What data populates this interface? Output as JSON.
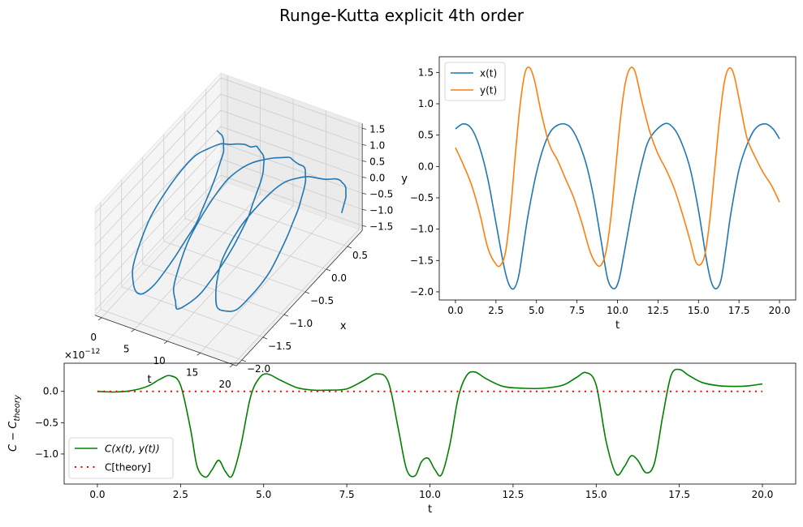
{
  "suptitle": "Runge-Kutta explicit 4th order",
  "chart_data": [
    {
      "type": "line3d",
      "axes": {
        "t": {
          "label": "t",
          "ticks": [
            0,
            5,
            10,
            15,
            20
          ],
          "tick_labels": [
            "0",
            "5",
            "10",
            "15",
            "20"
          ]
        },
        "x": {
          "label": "x",
          "ticks": [
            0.5,
            0.0,
            -0.5,
            -1.0,
            -1.5,
            -2.0
          ],
          "tick_labels": [
            "0.5",
            "0.0",
            "−0.5",
            "−1.0",
            "−1.5",
            "−2.0"
          ]
        },
        "y": {
          "label": "y",
          "ticks": [
            1.5,
            1.0,
            0.5,
            0.0,
            -0.5,
            -1.0,
            -1.5
          ],
          "tick_labels": [
            "1.5",
            "1.0",
            "0.5",
            "0.0",
            "−0.5",
            "−1.0",
            "−1.5"
          ]
        }
      },
      "series": [
        {
          "color": "#1f77b4"
        }
      ]
    },
    {
      "type": "line",
      "xlabel": "t",
      "xlim": [
        -1,
        21
      ],
      "ylim": [
        -2.13,
        1.75
      ],
      "xticks": [
        0,
        2.5,
        5,
        7.5,
        10,
        12.5,
        15,
        17.5,
        20
      ],
      "xtick_labels": [
        "0.0",
        "2.5",
        "5.0",
        "7.5",
        "10.0",
        "12.5",
        "15.0",
        "17.5",
        "20.0"
      ],
      "yticks": [
        -2.0,
        -1.5,
        -1.0,
        -0.5,
        0.0,
        0.5,
        1.0,
        1.5
      ],
      "ytick_labels": [
        "−2.0",
        "−1.5",
        "−1.0",
        "−0.5",
        "0.0",
        "0.5",
        "1.0",
        "1.5"
      ],
      "legend": "top-left",
      "series": [
        {
          "name": "x(t)",
          "color": "#1f77b4",
          "x": [
            0.0,
            0.5,
            1.0,
            1.5,
            2.0,
            2.5,
            3.0,
            3.3,
            3.6,
            3.9,
            4.2,
            4.5,
            5.0,
            5.5,
            6.0,
            6.7,
            7.3,
            8.0,
            8.5,
            9.0,
            9.4,
            9.8,
            10.1,
            10.4,
            11.0,
            11.5,
            12.0,
            12.9,
            13.5,
            14.0,
            14.5,
            15.0,
            15.5,
            15.8,
            16.1,
            16.4,
            16.7,
            17.0,
            17.5,
            18.0,
            18.5,
            19.1,
            19.6,
            20.0
          ],
          "y": [
            0.6,
            0.68,
            0.6,
            0.3,
            -0.2,
            -0.9,
            -1.6,
            -1.88,
            -1.95,
            -1.75,
            -1.25,
            -0.75,
            -0.1,
            0.35,
            0.6,
            0.68,
            0.55,
            0.1,
            -0.45,
            -1.2,
            -1.8,
            -1.95,
            -1.8,
            -1.4,
            -0.55,
            0.05,
            0.45,
            0.68,
            0.6,
            0.35,
            -0.05,
            -0.7,
            -1.5,
            -1.85,
            -1.95,
            -1.8,
            -1.3,
            -0.75,
            -0.05,
            0.35,
            0.6,
            0.68,
            0.6,
            0.44
          ]
        },
        {
          "name": "y(t)",
          "color": "#ff7f0e",
          "x": [
            0.0,
            0.5,
            1.0,
            1.5,
            2.0,
            2.5,
            2.8,
            3.1,
            3.4,
            3.7,
            4.0,
            4.3,
            4.6,
            4.9,
            5.3,
            5.8,
            6.3,
            6.8,
            7.3,
            7.8,
            8.3,
            8.7,
            9.0,
            9.3,
            9.6,
            9.9,
            10.2,
            10.5,
            10.8,
            11.1,
            11.5,
            12.0,
            12.5,
            13.0,
            13.5,
            14.0,
            14.5,
            14.8,
            15.1,
            15.4,
            15.7,
            16.0,
            16.3,
            16.6,
            16.9,
            17.2,
            17.6,
            18.0,
            18.5,
            19.0,
            19.5,
            20.0
          ],
          "y": [
            0.3,
            0.02,
            -0.3,
            -0.75,
            -1.3,
            -1.56,
            -1.57,
            -1.35,
            -0.7,
            0.2,
            1.0,
            1.5,
            1.57,
            1.35,
            0.85,
            0.35,
            0.1,
            -0.2,
            -0.5,
            -0.9,
            -1.35,
            -1.56,
            -1.57,
            -1.35,
            -0.8,
            0.0,
            0.8,
            1.35,
            1.57,
            1.5,
            1.05,
            0.55,
            0.2,
            -0.05,
            -0.35,
            -0.75,
            -1.2,
            -1.5,
            -1.57,
            -1.4,
            -0.85,
            -0.05,
            0.75,
            1.35,
            1.57,
            1.45,
            0.95,
            0.45,
            0.15,
            -0.1,
            -0.3,
            -0.57
          ]
        }
      ]
    },
    {
      "type": "line",
      "xlabel": "t",
      "ylabel": "C − C_theory",
      "offset_text": "×10^−12",
      "xlim": [
        -1,
        21
      ],
      "ylim": [
        -1.48,
        0.45
      ],
      "xticks": [
        0,
        2.5,
        5,
        7.5,
        10,
        12.5,
        15,
        17.5,
        20
      ],
      "xtick_labels": [
        "0.0",
        "2.5",
        "5.0",
        "7.5",
        "10.0",
        "12.5",
        "15.0",
        "17.5",
        "20.0"
      ],
      "yticks": [
        -1.0,
        -0.5,
        0.0
      ],
      "ytick_labels": [
        "−1.0",
        "−0.5",
        "0.0"
      ],
      "legend": "lower-left",
      "series": [
        {
          "name": "C(x(t), y(t))",
          "color": "#008000",
          "x": [
            0.0,
            0.5,
            1.0,
            1.5,
            1.9,
            2.2,
            2.5,
            2.8,
            3.0,
            3.25,
            3.45,
            3.65,
            3.85,
            4.05,
            4.3,
            4.6,
            4.85,
            5.1,
            5.5,
            6.0,
            6.5,
            7.0,
            7.5,
            8.0,
            8.4,
            8.75,
            9.05,
            9.3,
            9.55,
            9.75,
            9.95,
            10.15,
            10.35,
            10.6,
            10.85,
            11.1,
            11.35,
            11.7,
            12.2,
            12.8,
            13.4,
            14.0,
            14.4,
            14.7,
            15.0,
            15.3,
            15.6,
            15.85,
            16.05,
            16.25,
            16.5,
            16.75,
            17.0,
            17.25,
            17.5,
            17.8,
            18.2,
            18.7,
            19.2,
            19.6,
            20.0
          ],
          "y": [
            0.0,
            -0.01,
            0.01,
            0.08,
            0.2,
            0.25,
            0.1,
            -0.6,
            -1.2,
            -1.37,
            -1.25,
            -1.1,
            -1.28,
            -1.35,
            -0.9,
            -0.1,
            0.2,
            0.28,
            0.18,
            0.06,
            0.02,
            0.02,
            0.04,
            0.17,
            0.28,
            0.15,
            -0.6,
            -1.25,
            -1.35,
            -1.12,
            -1.07,
            -1.25,
            -1.33,
            -0.85,
            -0.1,
            0.25,
            0.31,
            0.2,
            0.08,
            0.05,
            0.05,
            0.1,
            0.22,
            0.3,
            0.1,
            -0.8,
            -1.32,
            -1.2,
            -1.03,
            -1.1,
            -1.3,
            -1.15,
            -0.4,
            0.25,
            0.35,
            0.25,
            0.14,
            0.09,
            0.08,
            0.09,
            0.12
          ]
        },
        {
          "name": "C[theory]",
          "color": "#ff0000",
          "style": "dotted",
          "x": [
            0.0,
            20.0
          ],
          "y": [
            0.0,
            0.0
          ]
        }
      ]
    }
  ]
}
